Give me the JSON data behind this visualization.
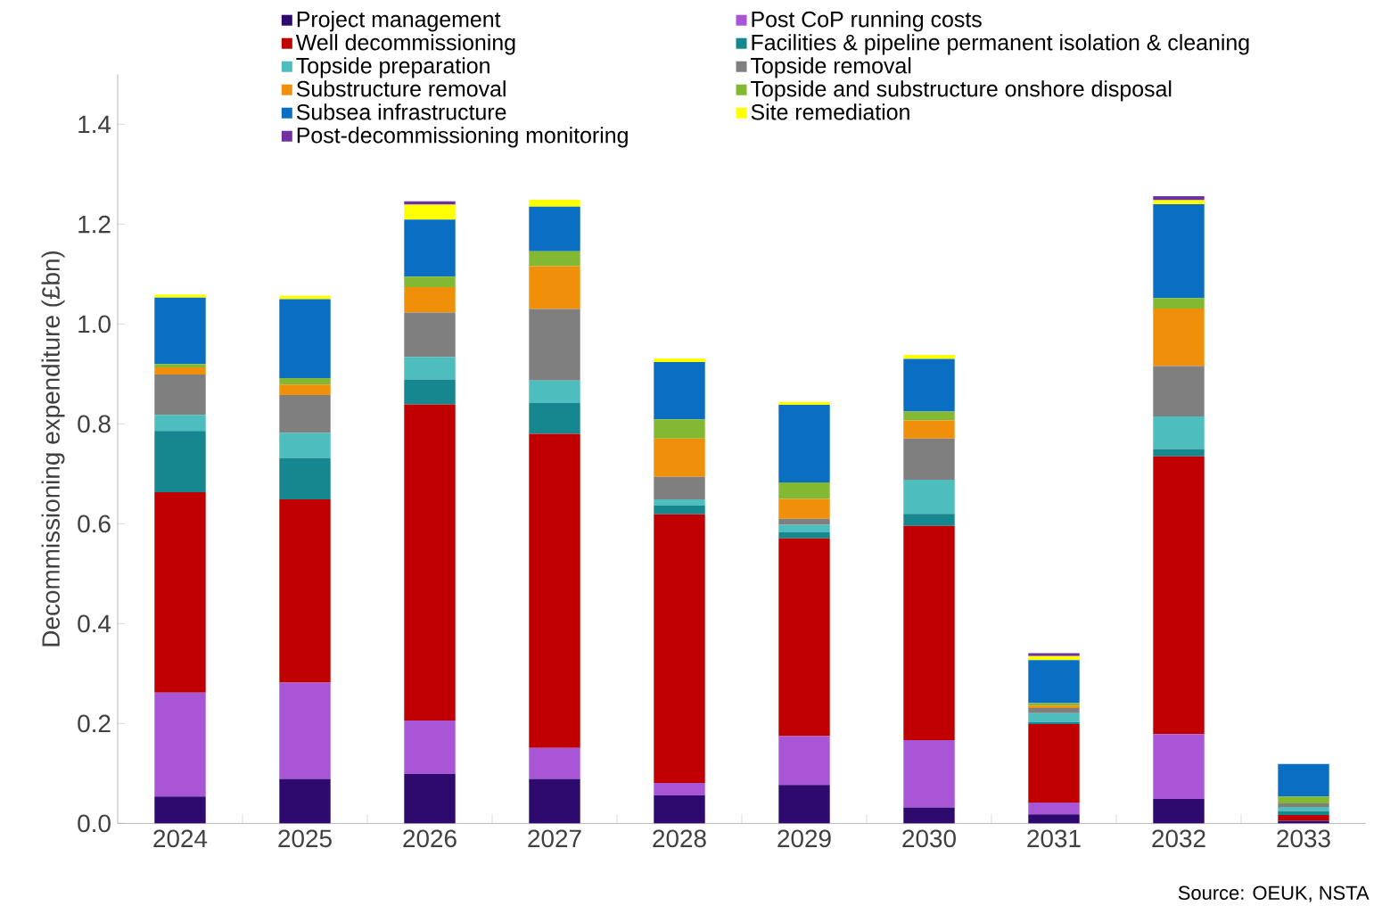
{
  "chart_data": {
    "type": "bar",
    "stacked": true,
    "ylabel": "Decommissioning expenditure (£bn)",
    "categories": [
      "2024",
      "2025",
      "2026",
      "2027",
      "2028",
      "2029",
      "2030",
      "2031",
      "2032",
      "2033"
    ],
    "ylim": [
      0,
      1.5
    ],
    "yticks": [
      {
        "value": 0,
        "label": "0.0"
      },
      0.2,
      0.4,
      0.6,
      0.8,
      {
        "value": 1,
        "label": "1.0"
      },
      1.2,
      1.4
    ],
    "legend": "top",
    "series": [
      {
        "name": "Project management",
        "color": "#2e0a6e",
        "values": [
          0.054,
          0.089,
          0.099,
          0.089,
          0.056,
          0.077,
          0.032,
          0.018,
          0.049,
          0.005
        ]
      },
      {
        "name": "Post CoP running costs",
        "color": "#a855d6",
        "values": [
          0.208,
          0.193,
          0.107,
          0.062,
          0.025,
          0.098,
          0.135,
          0.024,
          0.13,
          0
        ]
      },
      {
        "name": "Well decommissioning",
        "color": "#c00000",
        "values": [
          0.401,
          0.367,
          0.633,
          0.629,
          0.538,
          0.396,
          0.429,
          0.157,
          0.556,
          0.012
        ]
      },
      {
        "name": "Facilities & pipeline permanent isolation & cleaning",
        "color": "#17878f",
        "values": [
          0.123,
          0.083,
          0.05,
          0.062,
          0.018,
          0.012,
          0.024,
          0.004,
          0.015,
          0.008
        ]
      },
      {
        "name": "Topside preparation",
        "color": "#4dbdbd",
        "values": [
          0.032,
          0.05,
          0.045,
          0.045,
          0.012,
          0.015,
          0.068,
          0.018,
          0.065,
          0.008
        ]
      },
      {
        "name": "Topside removal",
        "color": "#7f7f7f",
        "values": [
          0.081,
          0.076,
          0.089,
          0.143,
          0.045,
          0.012,
          0.083,
          0.01,
          0.101,
          0.007
        ]
      },
      {
        "name": "Substructure removal",
        "color": "#f0900a",
        "values": [
          0.014,
          0.021,
          0.051,
          0.086,
          0.077,
          0.04,
          0.036,
          0.005,
          0.115,
          0
        ]
      },
      {
        "name": "Topside and substructure onshore disposal",
        "color": "#82b832",
        "values": [
          0.007,
          0.013,
          0.021,
          0.03,
          0.038,
          0.033,
          0.018,
          0.005,
          0.021,
          0.014
        ]
      },
      {
        "name": "Subsea infrastructure",
        "color": "#0a6fc2",
        "values": [
          0.133,
          0.158,
          0.114,
          0.089,
          0.115,
          0.155,
          0.105,
          0.086,
          0.188,
          0.065
        ]
      },
      {
        "name": "Site remediation",
        "color": "#ffff00",
        "values": [
          0.006,
          0.007,
          0.03,
          0.014,
          0.007,
          0.006,
          0.008,
          0.008,
          0.008,
          0
        ]
      },
      {
        "name": "Post-decommissioning monitoring",
        "color": "#7030a0",
        "values": [
          0,
          0,
          0.007,
          0,
          0,
          0,
          0,
          0.006,
          0.008,
          0
        ]
      }
    ],
    "annotations": [
      "Source: OEUK, NSTA"
    ]
  }
}
